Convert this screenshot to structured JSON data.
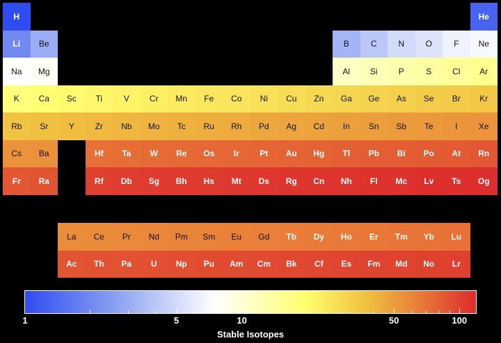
{
  "chart_data": {
    "type": "heatmap",
    "colorbar": {
      "label": "Stable Isotopes",
      "scale": "log",
      "range": [
        1,
        120
      ],
      "tick_labels": [
        "1",
        "5",
        "10",
        "50",
        "100"
      ],
      "tick_values": [
        1,
        5,
        10,
        50,
        100
      ],
      "minor_ticks": [
        2,
        3,
        4,
        6,
        7,
        8,
        9,
        20,
        30,
        40,
        60,
        70,
        80,
        90
      ],
      "colors": [
        "#2f4cf0",
        "#8aa0f2",
        "#ffffff",
        "#ffff70",
        "#f0c040",
        "#e87838",
        "#dc2c2c"
      ]
    },
    "elements": [
      {
        "symbol": "H",
        "period": 1,
        "group": 1,
        "value": 1
      },
      {
        "symbol": "He",
        "period": 1,
        "group": 18,
        "value": 1.3
      },
      {
        "symbol": "Li",
        "period": 2,
        "group": 1,
        "value": 2
      },
      {
        "symbol": "Be",
        "period": 2,
        "group": 2,
        "value": 3
      },
      {
        "symbol": "B",
        "period": 2,
        "group": 13,
        "value": 3.3
      },
      {
        "symbol": "C",
        "period": 2,
        "group": 14,
        "value": 4
      },
      {
        "symbol": "N",
        "period": 2,
        "group": 15,
        "value": 5
      },
      {
        "symbol": "O",
        "period": 2,
        "group": 16,
        "value": 5.5
      },
      {
        "symbol": "F",
        "period": 2,
        "group": 17,
        "value": 6.5
      },
      {
        "symbol": "Ne",
        "period": 2,
        "group": 18,
        "value": 7
      },
      {
        "symbol": "Na",
        "period": 3,
        "group": 1,
        "value": 7.5
      },
      {
        "symbol": "Mg",
        "period": 3,
        "group": 2,
        "value": 8
      },
      {
        "symbol": "Al",
        "period": 3,
        "group": 13,
        "value": 11
      },
      {
        "symbol": "Si",
        "period": 3,
        "group": 14,
        "value": 12
      },
      {
        "symbol": "P",
        "period": 3,
        "group": 15,
        "value": 13
      },
      {
        "symbol": "S",
        "period": 3,
        "group": 16,
        "value": 14
      },
      {
        "symbol": "Cl",
        "period": 3,
        "group": 17,
        "value": 15
      },
      {
        "symbol": "Ar",
        "period": 3,
        "group": 18,
        "value": 16
      },
      {
        "symbol": "K",
        "period": 4,
        "group": 1,
        "value": 18
      },
      {
        "symbol": "Ca",
        "period": 4,
        "group": 2,
        "value": 19
      },
      {
        "symbol": "Sc",
        "period": 4,
        "group": 3,
        "value": 20
      },
      {
        "symbol": "Ti",
        "period": 4,
        "group": 4,
        "value": 21
      },
      {
        "symbol": "V",
        "period": 4,
        "group": 5,
        "value": 22
      },
      {
        "symbol": "Cr",
        "period": 4,
        "group": 6,
        "value": 23
      },
      {
        "symbol": "Mn",
        "period": 4,
        "group": 7,
        "value": 24
      },
      {
        "symbol": "Fe",
        "period": 4,
        "group": 8,
        "value": 25
      },
      {
        "symbol": "Co",
        "period": 4,
        "group": 9,
        "value": 26
      },
      {
        "symbol": "Ni",
        "period": 4,
        "group": 10,
        "value": 27
      },
      {
        "symbol": "Cu",
        "period": 4,
        "group": 11,
        "value": 28
      },
      {
        "symbol": "Zn",
        "period": 4,
        "group": 12,
        "value": 29
      },
      {
        "symbol": "Ga",
        "period": 4,
        "group": 13,
        "value": 30
      },
      {
        "symbol": "Ge",
        "period": 4,
        "group": 14,
        "value": 31
      },
      {
        "symbol": "As",
        "period": 4,
        "group": 15,
        "value": 32
      },
      {
        "symbol": "Se",
        "period": 4,
        "group": 16,
        "value": 33
      },
      {
        "symbol": "Br",
        "period": 4,
        "group": 17,
        "value": 34
      },
      {
        "symbol": "Kr",
        "period": 4,
        "group": 18,
        "value": 35
      },
      {
        "symbol": "Rb",
        "period": 5,
        "group": 1,
        "value": 37
      },
      {
        "symbol": "Sr",
        "period": 5,
        "group": 2,
        "value": 38
      },
      {
        "symbol": "Y",
        "period": 5,
        "group": 3,
        "value": 39
      },
      {
        "symbol": "Zr",
        "period": 5,
        "group": 4,
        "value": 40
      },
      {
        "symbol": "Nb",
        "period": 5,
        "group": 5,
        "value": 41
      },
      {
        "symbol": "Mo",
        "period": 5,
        "group": 6,
        "value": 42
      },
      {
        "symbol": "Tc",
        "period": 5,
        "group": 7,
        "value": 43
      },
      {
        "symbol": "Ru",
        "period": 5,
        "group": 8,
        "value": 44
      },
      {
        "symbol": "Rh",
        "period": 5,
        "group": 9,
        "value": 45
      },
      {
        "symbol": "Pd",
        "period": 5,
        "group": 10,
        "value": 46
      },
      {
        "symbol": "Ag",
        "period": 5,
        "group": 11,
        "value": 47
      },
      {
        "symbol": "Cd",
        "period": 5,
        "group": 12,
        "value": 48
      },
      {
        "symbol": "In",
        "period": 5,
        "group": 13,
        "value": 49
      },
      {
        "symbol": "Sn",
        "period": 5,
        "group": 14,
        "value": 50
      },
      {
        "symbol": "Sb",
        "period": 5,
        "group": 15,
        "value": 51
      },
      {
        "symbol": "Te",
        "period": 5,
        "group": 16,
        "value": 52
      },
      {
        "symbol": "I",
        "period": 5,
        "group": 17,
        "value": 53
      },
      {
        "symbol": "Xe",
        "period": 5,
        "group": 18,
        "value": 54
      },
      {
        "symbol": "Cs",
        "period": 6,
        "group": 1,
        "value": 55
      },
      {
        "symbol": "Ba",
        "period": 6,
        "group": 2,
        "value": 56
      },
      {
        "symbol": "Hf",
        "period": 6,
        "group": 4,
        "value": 72
      },
      {
        "symbol": "Ta",
        "period": 6,
        "group": 5,
        "value": 73
      },
      {
        "symbol": "W",
        "period": 6,
        "group": 6,
        "value": 74
      },
      {
        "symbol": "Re",
        "period": 6,
        "group": 7,
        "value": 75
      },
      {
        "symbol": "Os",
        "period": 6,
        "group": 8,
        "value": 76
      },
      {
        "symbol": "Ir",
        "period": 6,
        "group": 9,
        "value": 77
      },
      {
        "symbol": "Pt",
        "period": 6,
        "group": 10,
        "value": 78
      },
      {
        "symbol": "Au",
        "period": 6,
        "group": 11,
        "value": 79
      },
      {
        "symbol": "Hg",
        "period": 6,
        "group": 12,
        "value": 80
      },
      {
        "symbol": "Tl",
        "period": 6,
        "group": 13,
        "value": 81
      },
      {
        "symbol": "Pb",
        "period": 6,
        "group": 14,
        "value": 82
      },
      {
        "symbol": "Bi",
        "period": 6,
        "group": 15,
        "value": 83
      },
      {
        "symbol": "Po",
        "period": 6,
        "group": 16,
        "value": 84
      },
      {
        "symbol": "At",
        "period": 6,
        "group": 17,
        "value": 85
      },
      {
        "symbol": "Rn",
        "period": 6,
        "group": 18,
        "value": 86
      },
      {
        "symbol": "Fr",
        "period": 7,
        "group": 1,
        "value": 87
      },
      {
        "symbol": "Ra",
        "period": 7,
        "group": 2,
        "value": 88
      },
      {
        "symbol": "Rf",
        "period": 7,
        "group": 4,
        "value": 104
      },
      {
        "symbol": "Db",
        "period": 7,
        "group": 5,
        "value": 105
      },
      {
        "symbol": "Sg",
        "period": 7,
        "group": 6,
        "value": 106
      },
      {
        "symbol": "Bh",
        "period": 7,
        "group": 7,
        "value": 107
      },
      {
        "symbol": "Hs",
        "period": 7,
        "group": 8,
        "value": 108
      },
      {
        "symbol": "Mt",
        "period": 7,
        "group": 9,
        "value": 109
      },
      {
        "symbol": "Ds",
        "period": 7,
        "group": 10,
        "value": 110
      },
      {
        "symbol": "Rg",
        "period": 7,
        "group": 11,
        "value": 111
      },
      {
        "symbol": "Cn",
        "period": 7,
        "group": 12,
        "value": 112
      },
      {
        "symbol": "Nh",
        "period": 7,
        "group": 13,
        "value": 113
      },
      {
        "symbol": "Fl",
        "period": 7,
        "group": 14,
        "value": 114
      },
      {
        "symbol": "Mc",
        "period": 7,
        "group": 15,
        "value": 115
      },
      {
        "symbol": "Lv",
        "period": 7,
        "group": 16,
        "value": 116
      },
      {
        "symbol": "Ts",
        "period": 7,
        "group": 17,
        "value": 117
      },
      {
        "symbol": "Og",
        "period": 7,
        "group": 18,
        "value": 118
      },
      {
        "symbol": "La",
        "period": 9,
        "group": 3,
        "value": 57
      },
      {
        "symbol": "Ce",
        "period": 9,
        "group": 4,
        "value": 58
      },
      {
        "symbol": "Pr",
        "period": 9,
        "group": 5,
        "value": 59
      },
      {
        "symbol": "Nd",
        "period": 9,
        "group": 6,
        "value": 60
      },
      {
        "symbol": "Pm",
        "period": 9,
        "group": 7,
        "value": 61
      },
      {
        "symbol": "Sm",
        "period": 9,
        "group": 8,
        "value": 62
      },
      {
        "symbol": "Eu",
        "period": 9,
        "group": 9,
        "value": 63
      },
      {
        "symbol": "Gd",
        "period": 9,
        "group": 10,
        "value": 64
      },
      {
        "symbol": "Tb",
        "period": 9,
        "group": 11,
        "value": 65
      },
      {
        "symbol": "Dy",
        "period": 9,
        "group": 12,
        "value": 66
      },
      {
        "symbol": "Ho",
        "period": 9,
        "group": 13,
        "value": 67
      },
      {
        "symbol": "Er",
        "period": 9,
        "group": 14,
        "value": 68
      },
      {
        "symbol": "Tm",
        "period": 9,
        "group": 15,
        "value": 69
      },
      {
        "symbol": "Yb",
        "period": 9,
        "group": 16,
        "value": 70
      },
      {
        "symbol": "Lu",
        "period": 9,
        "group": 17,
        "value": 71
      },
      {
        "symbol": "Ac",
        "period": 10,
        "group": 3,
        "value": 89
      },
      {
        "symbol": "Th",
        "period": 10,
        "group": 4,
        "value": 90
      },
      {
        "symbol": "Pa",
        "period": 10,
        "group": 5,
        "value": 91
      },
      {
        "symbol": "U",
        "period": 10,
        "group": 6,
        "value": 92
      },
      {
        "symbol": "Np",
        "period": 10,
        "group": 7,
        "value": 93
      },
      {
        "symbol": "Pu",
        "period": 10,
        "group": 8,
        "value": 94
      },
      {
        "symbol": "Am",
        "period": 10,
        "group": 9,
        "value": 95
      },
      {
        "symbol": "Cm",
        "period": 10,
        "group": 10,
        "value": 96
      },
      {
        "symbol": "Bk",
        "period": 10,
        "group": 11,
        "value": 97
      },
      {
        "symbol": "Cf",
        "period": 10,
        "group": 12,
        "value": 98
      },
      {
        "symbol": "Es",
        "period": 10,
        "group": 13,
        "value": 99
      },
      {
        "symbol": "Fm",
        "period": 10,
        "group": 14,
        "value": 100
      },
      {
        "symbol": "Md",
        "period": 10,
        "group": 15,
        "value": 101
      },
      {
        "symbol": "No",
        "period": 10,
        "group": 16,
        "value": 102
      },
      {
        "symbol": "Lr",
        "period": 10,
        "group": 17,
        "value": 103
      }
    ]
  }
}
